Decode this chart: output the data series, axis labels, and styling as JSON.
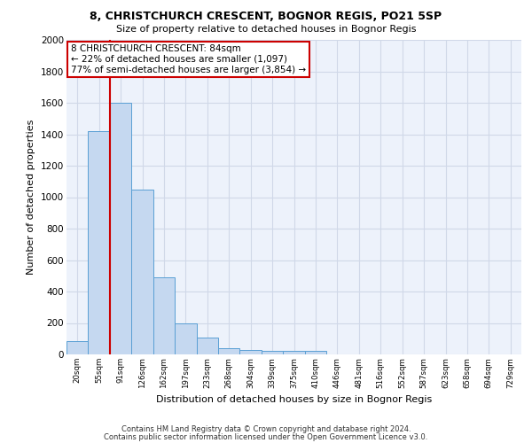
{
  "title1": "8, CHRISTCHURCH CRESCENT, BOGNOR REGIS, PO21 5SP",
  "title2": "Size of property relative to detached houses in Bognor Regis",
  "xlabel": "Distribution of detached houses by size in Bognor Regis",
  "ylabel": "Number of detached properties",
  "bin_labels": [
    "20sqm",
    "55sqm",
    "91sqm",
    "126sqm",
    "162sqm",
    "197sqm",
    "233sqm",
    "268sqm",
    "304sqm",
    "339sqm",
    "375sqm",
    "410sqm",
    "446sqm",
    "481sqm",
    "516sqm",
    "552sqm",
    "587sqm",
    "623sqm",
    "658sqm",
    "694sqm",
    "729sqm"
  ],
  "bar_heights": [
    85,
    1420,
    1600,
    1050,
    490,
    200,
    105,
    40,
    30,
    20,
    20,
    20,
    0,
    0,
    0,
    0,
    0,
    0,
    0,
    0,
    0
  ],
  "bar_color": "#c5d8f0",
  "bar_edge_color": "#5a9fd4",
  "red_line_index": 2,
  "annotation_line1": "8 CHRISTCHURCH CRESCENT: 84sqm",
  "annotation_line2": "← 22% of detached houses are smaller (1,097)",
  "annotation_line3": "77% of semi-detached houses are larger (3,854) →",
  "annotation_border_color": "#cc0000",
  "grid_color": "#d0d8e8",
  "background_color": "#edf2fb",
  "ylim": [
    0,
    2000
  ],
  "yticks": [
    0,
    200,
    400,
    600,
    800,
    1000,
    1200,
    1400,
    1600,
    1800,
    2000
  ],
  "footer_line1": "Contains HM Land Registry data © Crown copyright and database right 2024.",
  "footer_line2": "Contains public sector information licensed under the Open Government Licence v3.0.",
  "red_line_color": "#cc0000"
}
